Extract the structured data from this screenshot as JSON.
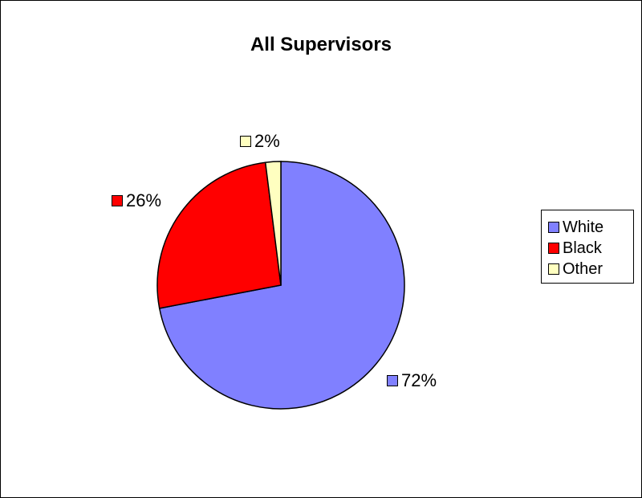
{
  "chart_data": {
    "type": "pie",
    "title": "All Supervisors",
    "categories": [
      "White",
      "Black",
      "Other"
    ],
    "values": [
      72,
      26,
      2
    ],
    "labels": [
      "72%",
      "26%",
      "2%"
    ],
    "colors": [
      "#8080ff",
      "#ff0000",
      "#ffffc0"
    ],
    "legend_position": "right"
  }
}
